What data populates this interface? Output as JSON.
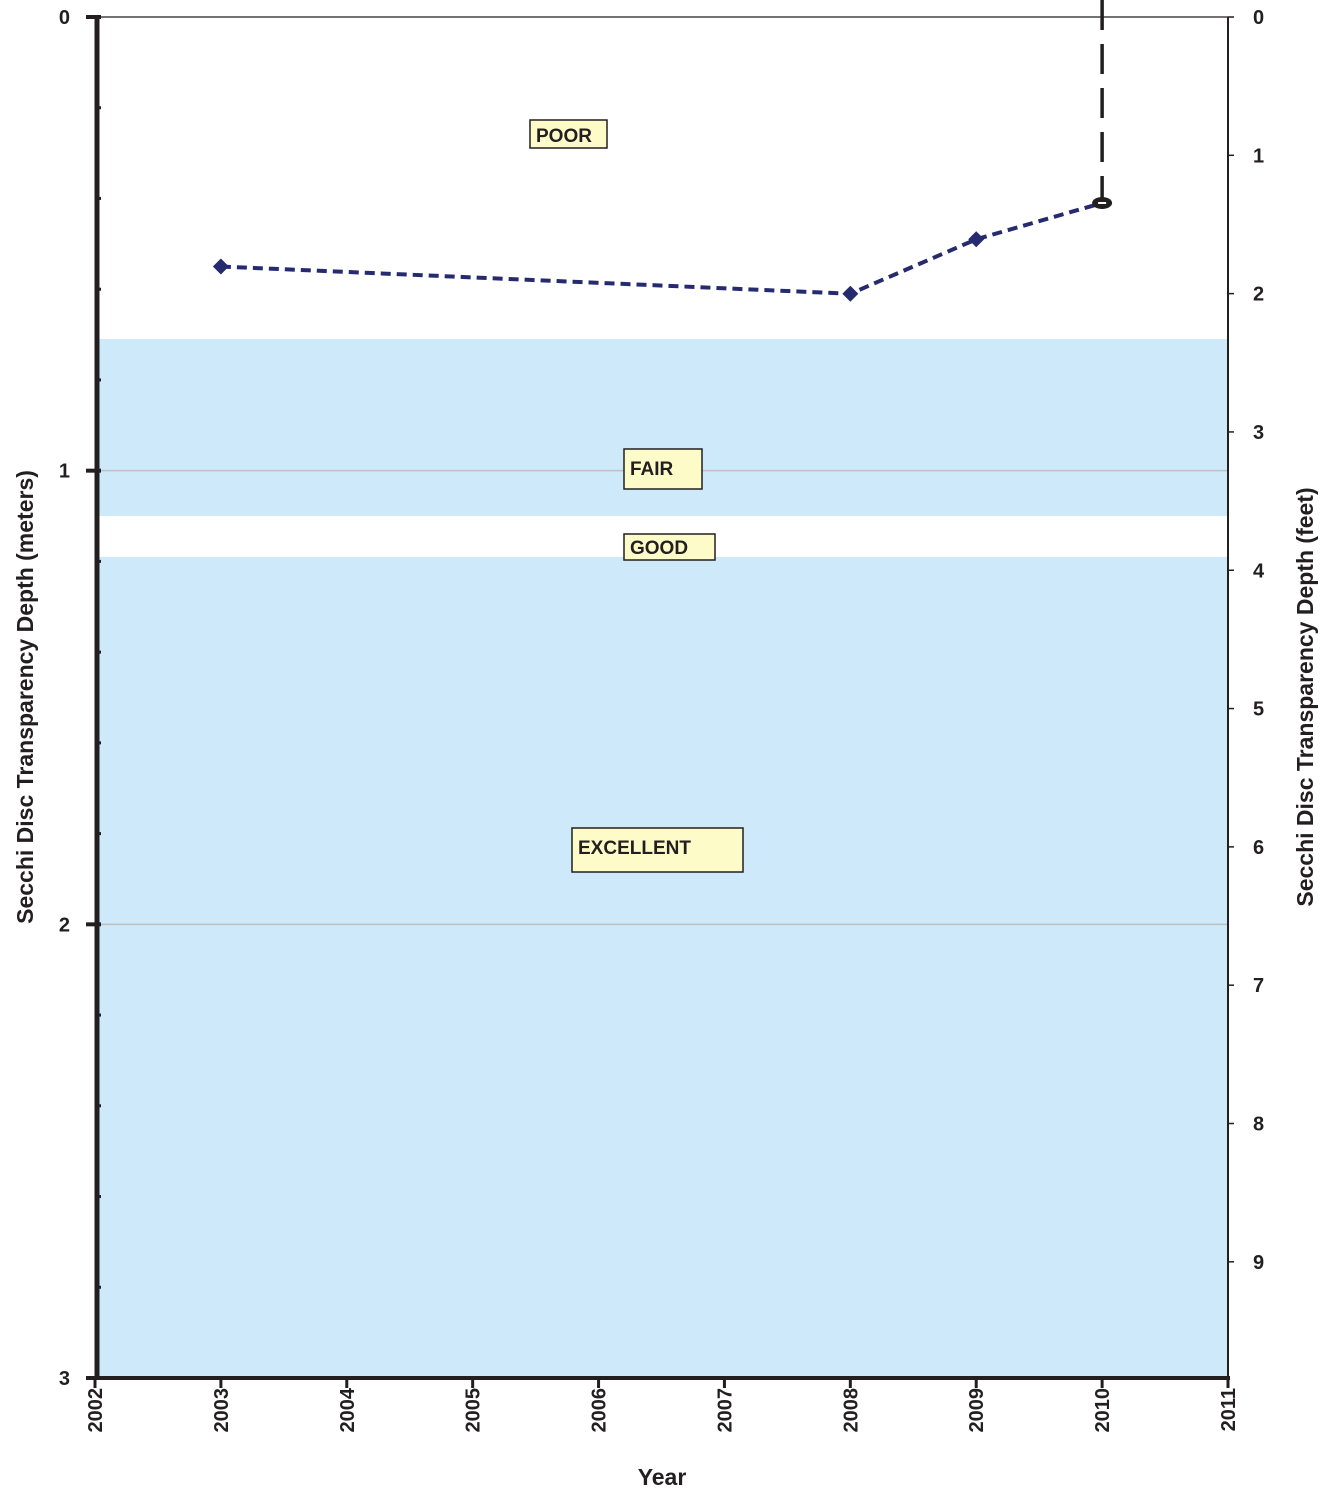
{
  "chart_data": {
    "type": "line",
    "x_axis": {
      "title": "Year",
      "range": [
        2002,
        2011
      ],
      "tick_labels": [
        "2002",
        "2003",
        "2004",
        "2005",
        "2006",
        "2007",
        "2008",
        "2009",
        "2010",
        "2011"
      ]
    },
    "y_axis_left": {
      "title": "Secchi Disc Transparency Depth (meters)",
      "range": [
        0,
        3
      ],
      "inverted": true,
      "tick_labels": [
        "0",
        "1",
        "2",
        "3"
      ]
    },
    "y_axis_right": {
      "title": "Secchi Disc Transparency Depth (feet)",
      "range": [
        0,
        9.84
      ],
      "inverted": true,
      "tick_labels": [
        "0",
        "1",
        "2",
        "3",
        "4",
        "5",
        "6",
        "7",
        "8",
        "9"
      ]
    },
    "grid": true,
    "bands": [
      {
        "label": "POOR",
        "from": 0,
        "to": 0.71,
        "color": "#ffffff"
      },
      {
        "label": "FAIR",
        "from": 0.71,
        "to": 1.1,
        "color": "#cde9fa"
      },
      {
        "label": "GOOD",
        "from": 1.1,
        "to": 1.19,
        "color": "#ffffff"
      },
      {
        "label": "EXCELLENT",
        "from": 1.19,
        "to": 3,
        "color": "#cde9fa"
      }
    ],
    "series": [
      {
        "x": [
          2003,
          2008,
          2009,
          2010
        ],
        "y": [
          0.55,
          0.61,
          0.49,
          0.41
        ],
        "color": "#262a6f",
        "marker": "diamond",
        "line_style": "dashed"
      }
    ],
    "reference_line": {
      "x": 2010,
      "y_from": 0,
      "y_to": 0.41,
      "color": "#231f20",
      "line_style": "dashed"
    },
    "band_label_color": "#fdfcc8"
  }
}
